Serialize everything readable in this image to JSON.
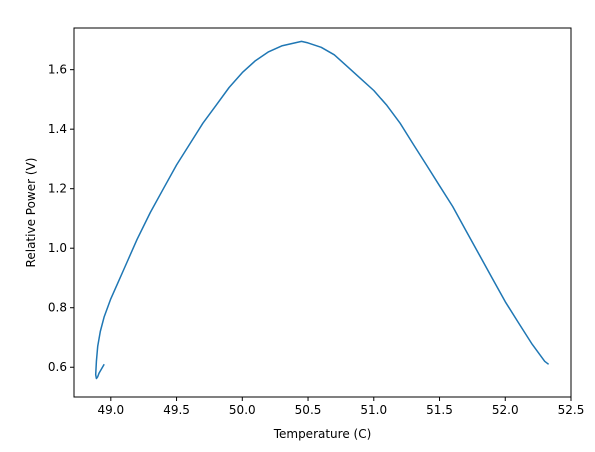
{
  "chart_data": {
    "type": "line",
    "title": "",
    "xlabel": "Temperature (C)",
    "ylabel": "Relative Power (V)",
    "xlim": [
      48.72,
      52.5
    ],
    "ylim": [
      0.5,
      1.74
    ],
    "xticks": [
      49.0,
      49.5,
      50.0,
      50.5,
      51.0,
      51.5,
      52.0,
      52.5
    ],
    "xtick_labels": [
      "49.0",
      "49.5",
      "50.0",
      "50.5",
      "51.0",
      "51.5",
      "52.0",
      "52.5"
    ],
    "yticks": [
      0.6,
      0.8,
      1.0,
      1.2,
      1.4,
      1.6
    ],
    "ytick_labels": [
      "0.6",
      "0.8",
      "1.0",
      "1.2",
      "1.4",
      "1.6"
    ],
    "grid": false,
    "legend": "none",
    "series": [
      {
        "color": "#1f77b4",
        "x": [
          48.95,
          48.93,
          48.91,
          48.9,
          48.89,
          48.885,
          48.89,
          48.9,
          48.92,
          48.95,
          49.0,
          49.05,
          49.1,
          49.2,
          49.3,
          49.4,
          49.5,
          49.6,
          49.7,
          49.8,
          49.9,
          50.0,
          50.1,
          50.2,
          50.3,
          50.4,
          50.45,
          50.5,
          50.6,
          50.7,
          50.8,
          50.9,
          51.0,
          51.1,
          51.2,
          51.3,
          51.4,
          51.5,
          51.6,
          51.7,
          51.8,
          51.9,
          52.0,
          52.1,
          52.2,
          52.3,
          52.33
        ],
        "y": [
          0.61,
          0.595,
          0.58,
          0.568,
          0.562,
          0.575,
          0.62,
          0.67,
          0.72,
          0.77,
          0.83,
          0.88,
          0.93,
          1.03,
          1.12,
          1.2,
          1.28,
          1.35,
          1.42,
          1.48,
          1.54,
          1.59,
          1.63,
          1.66,
          1.68,
          1.69,
          1.695,
          1.69,
          1.675,
          1.65,
          1.61,
          1.57,
          1.53,
          1.48,
          1.42,
          1.35,
          1.28,
          1.21,
          1.14,
          1.06,
          0.98,
          0.9,
          0.82,
          0.75,
          0.68,
          0.62,
          0.61
        ]
      }
    ]
  }
}
